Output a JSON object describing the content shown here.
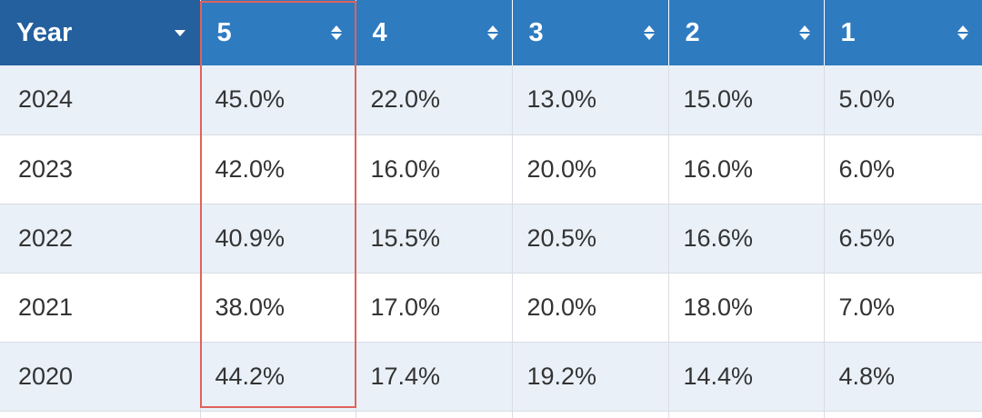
{
  "table": {
    "headers": {
      "year": "Year",
      "cols": [
        "5",
        "4",
        "3",
        "2",
        "1"
      ]
    },
    "rows": [
      {
        "year": "2024",
        "values": [
          "45.0%",
          "22.0%",
          "13.0%",
          "15.0%",
          "5.0%"
        ]
      },
      {
        "year": "2023",
        "values": [
          "42.0%",
          "16.0%",
          "20.0%",
          "16.0%",
          "6.0%"
        ]
      },
      {
        "year": "2022",
        "values": [
          "40.9%",
          "15.5%",
          "20.5%",
          "16.6%",
          "6.5%"
        ]
      },
      {
        "year": "2021",
        "values": [
          "38.0%",
          "17.0%",
          "20.0%",
          "18.0%",
          "7.0%"
        ]
      },
      {
        "year": "2020",
        "values": [
          "44.2%",
          "17.4%",
          "19.2%",
          "14.4%",
          "4.8%"
        ]
      }
    ]
  },
  "colors": {
    "header_bg": "#2f7bc0",
    "year_header_bg": "#245f9e",
    "row_alt_bg": "#e9f0f8",
    "highlight_border": "#e0625a"
  },
  "icons": {
    "sort": "sort-both-icon",
    "dropdown": "dropdown-caret-icon"
  }
}
